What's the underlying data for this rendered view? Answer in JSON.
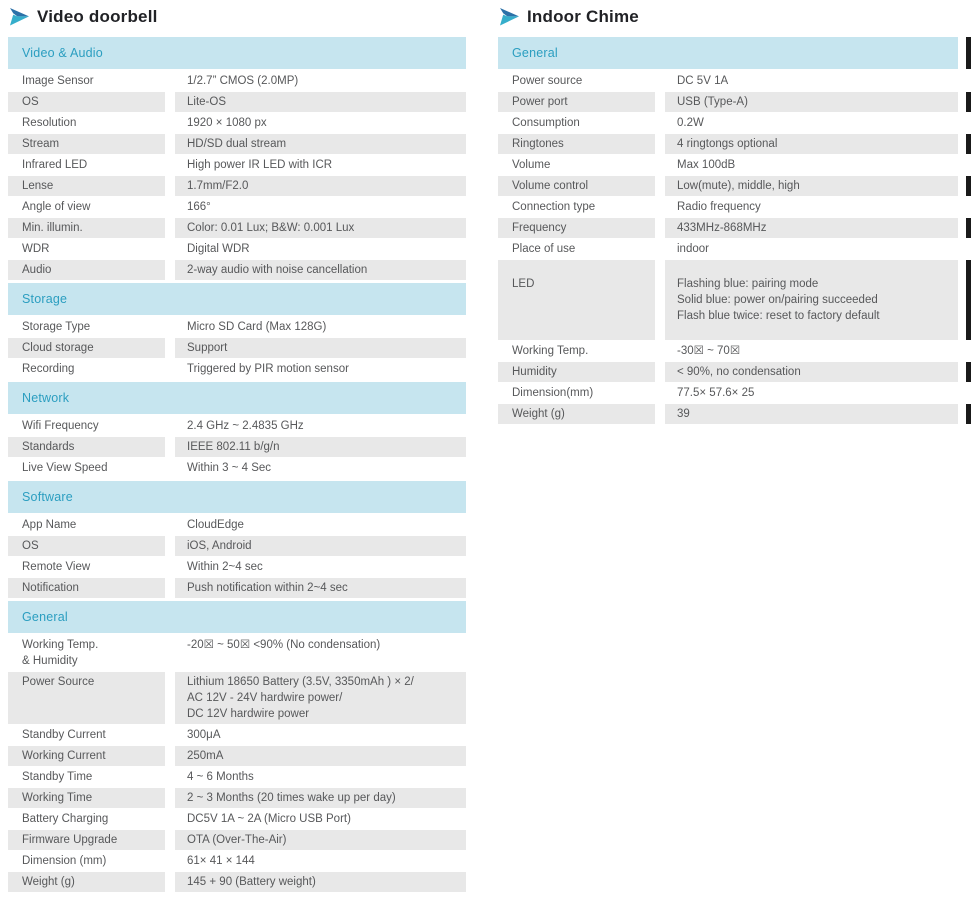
{
  "colors": {
    "section_header_bg": "#c6e5ef",
    "section_header_text": "#2b9ec0",
    "row_alt_bg": "#e8e8e8",
    "body_text": "#57585a",
    "title_text": "#212226",
    "arrow_dark": "#2b71a8",
    "arrow_cyan": "#35aecb"
  },
  "columns": [
    {
      "title": "Video doorbell",
      "icon": "arrow-icon",
      "sections": [
        {
          "header": "Video & Audio",
          "rows": [
            {
              "label": "Image Sensor",
              "value": "1/2.7” CMOS (2.0MP)"
            },
            {
              "label": "OS",
              "value": "Lite-OS"
            },
            {
              "label": "Resolution",
              "value": "1920 × 1080 px"
            },
            {
              "label": "Stream",
              "value": "HD/SD dual stream"
            },
            {
              "label": "Infrared LED",
              "value": "High power IR LED with ICR"
            },
            {
              "label": "Lense",
              "value": "1.7mm/F2.0"
            },
            {
              "label": "Angle of view",
              "value": "166°"
            },
            {
              "label": "Min. illumin.",
              "value": "Color: 0.01 Lux; B&W: 0.001 Lux"
            },
            {
              "label": "WDR",
              "value": "Digital WDR"
            },
            {
              "label": "Audio",
              "value": "2-way audio with noise cancellation"
            }
          ]
        },
        {
          "header": "Storage",
          "rows": [
            {
              "label": "Storage Type",
              "value": "Micro SD Card (Max 128G)"
            },
            {
              "label": "Cloud storage",
              "value": "Support"
            },
            {
              "label": "Recording",
              "value": "Triggered by PIR motion sensor"
            }
          ]
        },
        {
          "header": "Network",
          "rows": [
            {
              "label": "Wifi Frequency",
              "value": "2.4 GHz ~ 2.4835 GHz"
            },
            {
              "label": "Standards",
              "value": "IEEE 802.11 b/g/n"
            },
            {
              "label": "Live View Speed",
              "value": "Within 3 ~ 4 Sec"
            }
          ]
        },
        {
          "header": "Software",
          "rows": [
            {
              "label": "App Name",
              "value": "CloudEdge"
            },
            {
              "label": "OS",
              "value": "iOS, Android"
            },
            {
              "label": "Remote View",
              "value": "Within 2~4 sec"
            },
            {
              "label": "Notification",
              "value": "Push notification within 2~4 sec"
            }
          ]
        },
        {
          "header": "General",
          "rows": [
            {
              "label": [
                "Working Temp.",
                "& Humidity"
              ],
              "value": "-20☒ ~ 50☒  <90%  (No condensation)"
            },
            {
              "label": "Power Source",
              "value": [
                "Lithium 18650 Battery (3.5V, 3350mAh ) × 2/",
                "AC 12V - 24V hardwire power/",
                "DC 12V hardwire power"
              ]
            },
            {
              "label": "Standby Current",
              "value": "300μA"
            },
            {
              "label": "Working Current",
              "value": "250mA"
            },
            {
              "label": "Standby Time",
              "value": "4 ~ 6 Months"
            },
            {
              "label": "Working Time",
              "value": "2 ~ 3 Months (20 times wake up per day)"
            },
            {
              "label": "Battery Charging",
              "value": "DC5V 1A ~ 2A (Micro USB Port)"
            },
            {
              "label": "Firmware Upgrade",
              "value": "OTA (Over-The-Air)"
            },
            {
              "label": "Dimension (mm)",
              "value": "61× 41 × 144"
            },
            {
              "label": "Weight (g)",
              "value": "145 + 90 (Battery weight)"
            }
          ]
        }
      ]
    },
    {
      "title": "Indoor Chime",
      "icon": "arrow-icon",
      "sections": [
        {
          "header": "General",
          "rows": [
            {
              "label": "Power source",
              "value": "DC 5V 1A"
            },
            {
              "label": "Power port",
              "value": "USB (Type-A)"
            },
            {
              "label": "Consumption",
              "value": "0.2W"
            },
            {
              "label": "Ringtones",
              "value": "4 ringtongs optional"
            },
            {
              "label": "Volume",
              "value": "Max 100dB"
            },
            {
              "label": "Volume control",
              "value": "Low(mute), middle, high"
            },
            {
              "label": "Connection type",
              "value": "Radio  frequency"
            },
            {
              "label": "Frequency",
              "value": "433MHz-868MHz"
            },
            {
              "label": "Place of use",
              "value": "indoor"
            },
            {
              "label": "LED",
              "tall": true,
              "value": [
                "Flashing blue: pairing mode",
                "Solid blue: power on/pairing succeeded",
                "Flash blue twice: reset to factory default"
              ]
            },
            {
              "label": "Working Temp.",
              "value": "-30☒ ~ 70☒"
            },
            {
              "label": "Humidity",
              "value": "< 90%, no condensation"
            },
            {
              "label": "Dimension(mm)",
              "value": "77.5× 57.6× 25"
            },
            {
              "label": "Weight (g)",
              "value": "39"
            }
          ]
        }
      ]
    }
  ]
}
